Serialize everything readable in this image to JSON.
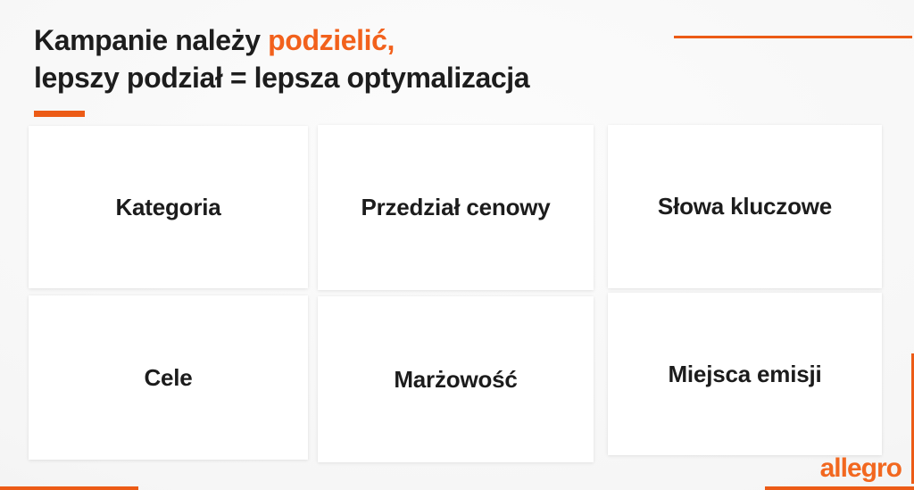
{
  "slide": {
    "title": {
      "line1_prefix": "Kampanie należy ",
      "line1_highlight": "podzielić,",
      "line2": "lepszy podział = lepsza optymalizacja"
    },
    "cards": [
      {
        "label": "Kategoria"
      },
      {
        "label": "Przedział cenowy"
      },
      {
        "label": "Słowa kluczowe"
      },
      {
        "label": "Cele"
      },
      {
        "label": "Marżowość"
      },
      {
        "label": "Miejsca emisji"
      }
    ],
    "logo_text": "allegro",
    "colors": {
      "accent_orange": "#F2611C",
      "accent_line": "#EC5B16",
      "logo_orange": "#F26820",
      "card_background": "#FFFFFF",
      "page_background": "#F4F4F4",
      "title_text": "#1D1D1D"
    }
  }
}
